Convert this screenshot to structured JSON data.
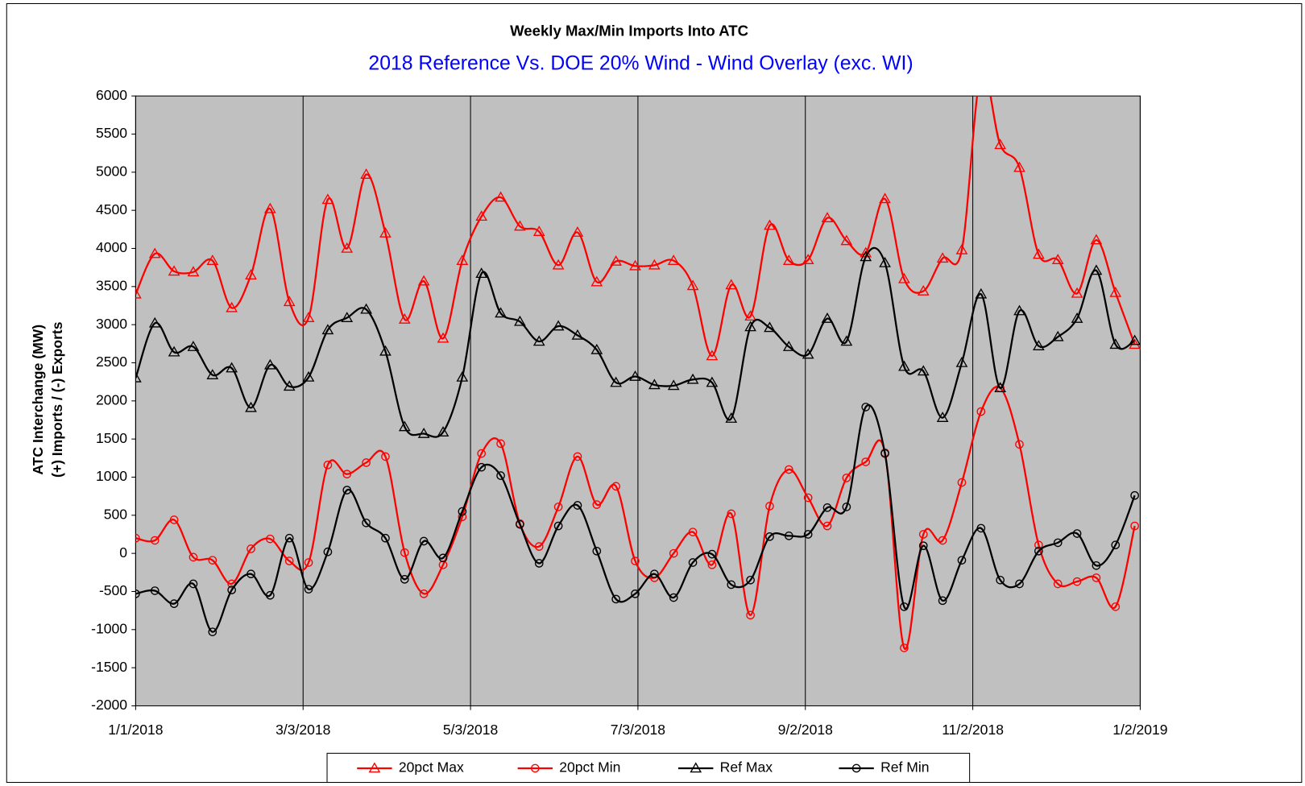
{
  "chart_data": {
    "type": "line",
    "title": "Weekly Max/Min Imports Into ATC",
    "subtitle": "2018 Reference Vs. DOE 20% Wind - Wind Overlay (exc. WI)",
    "ylabel": [
      "ATC Interchange (MW)",
      "(+) Imports / (-) Exports"
    ],
    "x": [
      "2018-01-01",
      "2018-01-08",
      "2018-01-15",
      "2018-01-22",
      "2018-01-29",
      "2018-02-05",
      "2018-02-12",
      "2018-02-19",
      "2018-02-26",
      "2018-03-05",
      "2018-03-12",
      "2018-03-19",
      "2018-03-26",
      "2018-04-02",
      "2018-04-09",
      "2018-04-16",
      "2018-04-23",
      "2018-04-30",
      "2018-05-07",
      "2018-05-14",
      "2018-05-21",
      "2018-05-28",
      "2018-06-04",
      "2018-06-11",
      "2018-06-18",
      "2018-06-25",
      "2018-07-02",
      "2018-07-09",
      "2018-07-16",
      "2018-07-23",
      "2018-07-30",
      "2018-08-06",
      "2018-08-13",
      "2018-08-20",
      "2018-08-27",
      "2018-09-03",
      "2018-09-10",
      "2018-09-17",
      "2018-09-24",
      "2018-10-01",
      "2018-10-08",
      "2018-10-15",
      "2018-10-22",
      "2018-10-29",
      "2018-11-05",
      "2018-11-12",
      "2018-11-19",
      "2018-11-26",
      "2018-12-03",
      "2018-12-10",
      "2018-12-17",
      "2018-12-24",
      "2018-12-31"
    ],
    "series": [
      {
        "name": "20pct Max",
        "color": "#ff0000",
        "marker": "triangle",
        "values": [
          3400,
          3930,
          3700,
          3690,
          3840,
          3220,
          3650,
          4520,
          3300,
          3090,
          4640,
          4000,
          4970,
          4200,
          3070,
          3570,
          2820,
          3840,
          4420,
          4670,
          4290,
          4220,
          3780,
          4210,
          3560,
          3830,
          3770,
          3780,
          3840,
          3510,
          2590,
          3520,
          3110,
          4300,
          3840,
          3850,
          4400,
          4100,
          3940,
          4650,
          3600,
          3440,
          3870,
          3980,
          6300,
          5360,
          5060,
          3920,
          3850,
          3410,
          4110,
          3420,
          2740
        ]
      },
      {
        "name": "20pct Min",
        "color": "#ff0000",
        "marker": "circle",
        "values": [
          200,
          170,
          440,
          -50,
          -90,
          -400,
          60,
          190,
          -100,
          -120,
          1160,
          1040,
          1190,
          1270,
          10,
          -530,
          -150,
          480,
          1310,
          1440,
          390,
          90,
          610,
          1270,
          640,
          880,
          -100,
          -320,
          0,
          280,
          -150,
          520,
          -810,
          620,
          1100,
          730,
          360,
          990,
          1200,
          1320,
          -1240,
          250,
          170,
          930,
          1860,
          2170,
          1430,
          110,
          -400,
          -370,
          -320,
          -700,
          360
        ]
      },
      {
        "name": "Ref Max",
        "color": "#000000",
        "marker": "triangle",
        "values": [
          2300,
          3020,
          2640,
          2710,
          2340,
          2430,
          1910,
          2470,
          2190,
          2310,
          2930,
          3090,
          3200,
          2650,
          1660,
          1570,
          1590,
          2310,
          3670,
          3150,
          3040,
          2780,
          2980,
          2860,
          2670,
          2240,
          2320,
          2210,
          2200,
          2280,
          2240,
          1770,
          2970,
          2960,
          2710,
          2610,
          3080,
          2780,
          3890,
          3810,
          2450,
          2390,
          1780,
          2500,
          3400,
          2170,
          3180,
          2720,
          2840,
          3080,
          3710,
          2740,
          2790
        ]
      },
      {
        "name": "Ref Min",
        "color": "#000000",
        "marker": "circle",
        "values": [
          -530,
          -490,
          -660,
          -400,
          -1030,
          -480,
          -270,
          -550,
          200,
          -470,
          20,
          830,
          400,
          200,
          -340,
          160,
          -60,
          550,
          1130,
          1020,
          380,
          -130,
          360,
          630,
          30,
          -600,
          -530,
          -270,
          -580,
          -120,
          -10,
          -410,
          -350,
          220,
          230,
          250,
          600,
          610,
          1920,
          1310,
          -700,
          100,
          -620,
          -90,
          330,
          -350,
          -400,
          30,
          140,
          260,
          -160,
          110,
          760
        ]
      }
    ],
    "xlim": [
      "2018-01-01",
      "2019-01-02"
    ],
    "xticks": [
      {
        "value": "2018-01-01",
        "label": "1/1/2018"
      },
      {
        "value": "2018-03-03",
        "label": "3/3/2018"
      },
      {
        "value": "2018-05-03",
        "label": "5/3/2018"
      },
      {
        "value": "2018-07-03",
        "label": "7/3/2018"
      },
      {
        "value": "2018-09-02",
        "label": "9/2/2018"
      },
      {
        "value": "2018-11-02",
        "label": "11/2/2018"
      },
      {
        "value": "2019-01-02",
        "label": "1/2/2019"
      }
    ],
    "ylim": [
      -2000,
      6000
    ],
    "yticks": [
      -2000,
      -1500,
      -1000,
      -500,
      0,
      500,
      1000,
      1500,
      2000,
      2500,
      3000,
      3500,
      4000,
      4500,
      5000,
      5500,
      6000
    ],
    "grid": "x",
    "plot_background": "#c0c0c0",
    "legend": "bottom"
  }
}
